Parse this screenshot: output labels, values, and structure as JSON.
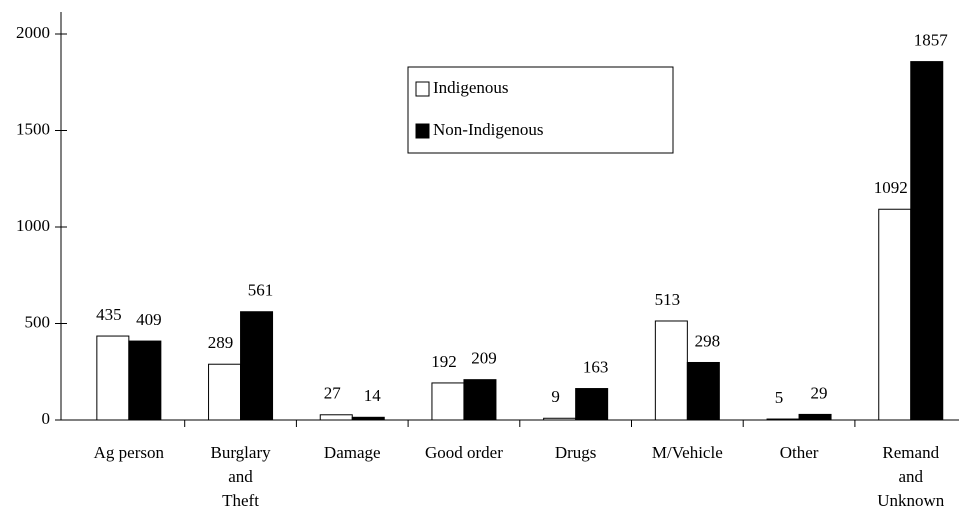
{
  "chart_data": {
    "type": "bar",
    "categories": [
      "Ag person",
      "Burglary and Theft",
      "Damage",
      "Good order",
      "Drugs",
      "M/Vehicle",
      "Other",
      "Remand and Unknown"
    ],
    "series": [
      {
        "name": "Indigenous",
        "color": "#ffffff",
        "values": [
          435,
          289,
          27,
          192,
          9,
          513,
          5,
          1092
        ]
      },
      {
        "name": "Non-Indigenous",
        "color": "#000000",
        "values": [
          409,
          561,
          14,
          209,
          163,
          298,
          29,
          1857
        ]
      }
    ],
    "ylim": [
      0,
      2000
    ],
    "yticks": [
      0,
      500,
      1000,
      1500,
      2000
    ],
    "grid": false,
    "legend": "top"
  }
}
